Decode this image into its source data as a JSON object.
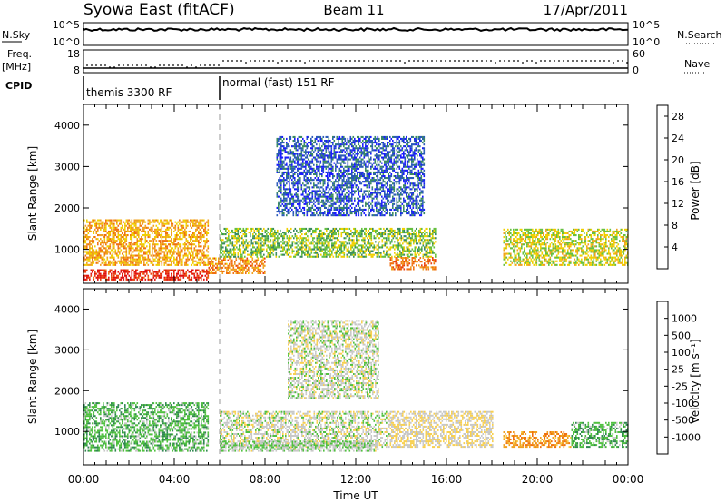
{
  "header": {
    "station": "Syowa East (fitACF)",
    "beam": "Beam 11",
    "date": "17/Apr/2011"
  },
  "noise_panel": {
    "left_label": "N.Sky",
    "right_label": "N.Search",
    "ticks_left": [
      "10^5",
      "10^0"
    ],
    "ticks_right": [
      "10^5",
      "10^0"
    ]
  },
  "freq_panel": {
    "left_label_1": "Freq.",
    "left_label_2": "[MHz]",
    "right_label": "Nave",
    "ticks_left": [
      "18",
      "8"
    ],
    "ticks_right": [
      "60",
      "0"
    ]
  },
  "cpid": {
    "label": "CPID",
    "segments": [
      {
        "name": "themis 3300 RF",
        "start_hour": 0
      },
      {
        "name": "normal (fast) 151 RF",
        "start_hour": 6
      }
    ]
  },
  "colors": {
    "power": [
      "#1a1aff",
      "#2a5ab8",
      "#3a8a60",
      "#66c040",
      "#f0d000",
      "#f0a020",
      "#f07010",
      "#e84010",
      "#e01010"
    ],
    "velocity": [
      "#e01010",
      "#f07010",
      "#f0a020",
      "#f8d050",
      "#c8c8c8",
      "#50c040",
      "#308850",
      "#3050b0",
      "#2030c8"
    ]
  },
  "chart_data": [
    {
      "type": "heatmap",
      "name": "power",
      "x": {
        "label": "",
        "range": [
          0,
          24
        ],
        "unit": "hour UT"
      },
      "ylabel": "Slant Range [km]",
      "ylim": [
        180,
        4500
      ],
      "yticks": [
        "1000",
        "2000",
        "3000",
        "4000"
      ],
      "colorbar": {
        "label": "Power [dB]",
        "ticks": [
          "4",
          "8",
          "12",
          "16",
          "20",
          "24",
          "28"
        ],
        "range": [
          0,
          30
        ]
      },
      "approx_regions": [
        {
          "t": [
            0.0,
            5.5
          ],
          "r": [
            250,
            500
          ],
          "level": 27
        },
        {
          "t": [
            0.0,
            5.5
          ],
          "r": [
            600,
            1700
          ],
          "level": 18
        },
        {
          "t": [
            5.5,
            8.0
          ],
          "r": [
            400,
            800
          ],
          "level": 20
        },
        {
          "t": [
            6.0,
            15.5
          ],
          "r": [
            800,
            1500
          ],
          "level": 12
        },
        {
          "t": [
            8.5,
            15.0
          ],
          "r": [
            1800,
            3700
          ],
          "level": 5
        },
        {
          "t": [
            13.5,
            15.5
          ],
          "r": [
            500,
            800
          ],
          "level": 22
        },
        {
          "t": [
            18.5,
            24.0
          ],
          "r": [
            600,
            1500
          ],
          "level": 14
        }
      ]
    },
    {
      "type": "heatmap",
      "name": "velocity",
      "x": {
        "label": "Time UT",
        "range": [
          0,
          24
        ],
        "ticks": [
          "00:00",
          "04:00",
          "08:00",
          "12:00",
          "16:00",
          "20:00",
          "00:00"
        ]
      },
      "ylabel": "Slant Range [km]",
      "ylim": [
        180,
        4500
      ],
      "yticks": [
        "1000",
        "2000",
        "3000",
        "4000"
      ],
      "colorbar": {
        "label": "Velocity [m s⁻¹]",
        "ticks": [
          "1000",
          "500",
          "100",
          "25",
          "-25",
          "-100",
          "-500",
          "-1000"
        ],
        "range": [
          -1250,
          1250
        ]
      },
      "approx_regions": [
        {
          "t": [
            0.0,
            5.5
          ],
          "r": [
            500,
            1700
          ],
          "level": -300
        },
        {
          "t": [
            6.0,
            13.5
          ],
          "r": [
            600,
            1500
          ],
          "level": 0
        },
        {
          "t": [
            6.0,
            13.0
          ],
          "r": [
            500,
            750
          ],
          "level": -100
        },
        {
          "t": [
            9.0,
            13.0
          ],
          "r": [
            1800,
            3700
          ],
          "level": 0
        },
        {
          "t": [
            13.5,
            18.0
          ],
          "r": [
            600,
            1500
          ],
          "level": 120
        },
        {
          "t": [
            18.5,
            21.5
          ],
          "r": [
            600,
            1000
          ],
          "level": 600
        },
        {
          "t": [
            21.5,
            24.0
          ],
          "r": [
            600,
            1200
          ],
          "level": -300
        }
      ]
    }
  ]
}
